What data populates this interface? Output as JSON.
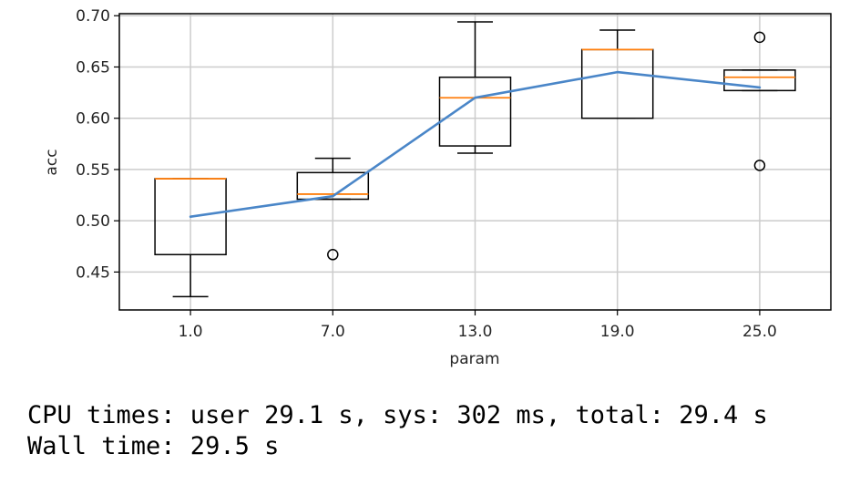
{
  "chart_data": {
    "type": "box",
    "xlabel": "param",
    "ylabel": "acc",
    "categories": [
      "1.0",
      "7.0",
      "13.0",
      "19.0",
      "25.0"
    ],
    "ylim": [
      0.413,
      0.702
    ],
    "yticks": [
      0.45,
      0.5,
      0.55,
      0.6,
      0.65,
      0.7
    ],
    "ytick_labels": [
      "0.45",
      "0.50",
      "0.55",
      "0.60",
      "0.65",
      "0.70"
    ],
    "grid": true,
    "boxes": [
      {
        "category": "1.0",
        "whisker_low": 0.426,
        "q1": 0.467,
        "median": 0.541,
        "q3": 0.541,
        "whisker_high": 0.541,
        "outliers": []
      },
      {
        "category": "7.0",
        "whisker_low": 0.521,
        "q1": 0.521,
        "median": 0.526,
        "q3": 0.547,
        "whisker_high": 0.561,
        "outliers": [
          0.467
        ]
      },
      {
        "category": "13.0",
        "whisker_low": 0.566,
        "q1": 0.573,
        "median": 0.62,
        "q3": 0.64,
        "whisker_high": 0.694,
        "outliers": []
      },
      {
        "category": "19.0",
        "whisker_low": 0.6,
        "q1": 0.6,
        "median": 0.667,
        "q3": 0.667,
        "whisker_high": 0.686,
        "outliers": []
      },
      {
        "category": "25.0",
        "whisker_low": 0.627,
        "q1": 0.627,
        "median": 0.64,
        "q3": 0.647,
        "whisker_high": 0.647,
        "outliers": [
          0.679,
          0.554
        ]
      }
    ],
    "mean_line": [
      0.504,
      0.524,
      0.62,
      0.645,
      0.63
    ],
    "colors": {
      "box": "#000000",
      "median": "#ff7f0e",
      "mean_line": "#4a86c8",
      "grid": "#cccccc"
    }
  },
  "console": {
    "cpu_times": "CPU times: user 29.1 s, sys: 302 ms, total: 29.4 s",
    "wall_time": "Wall time: 29.5 s"
  }
}
